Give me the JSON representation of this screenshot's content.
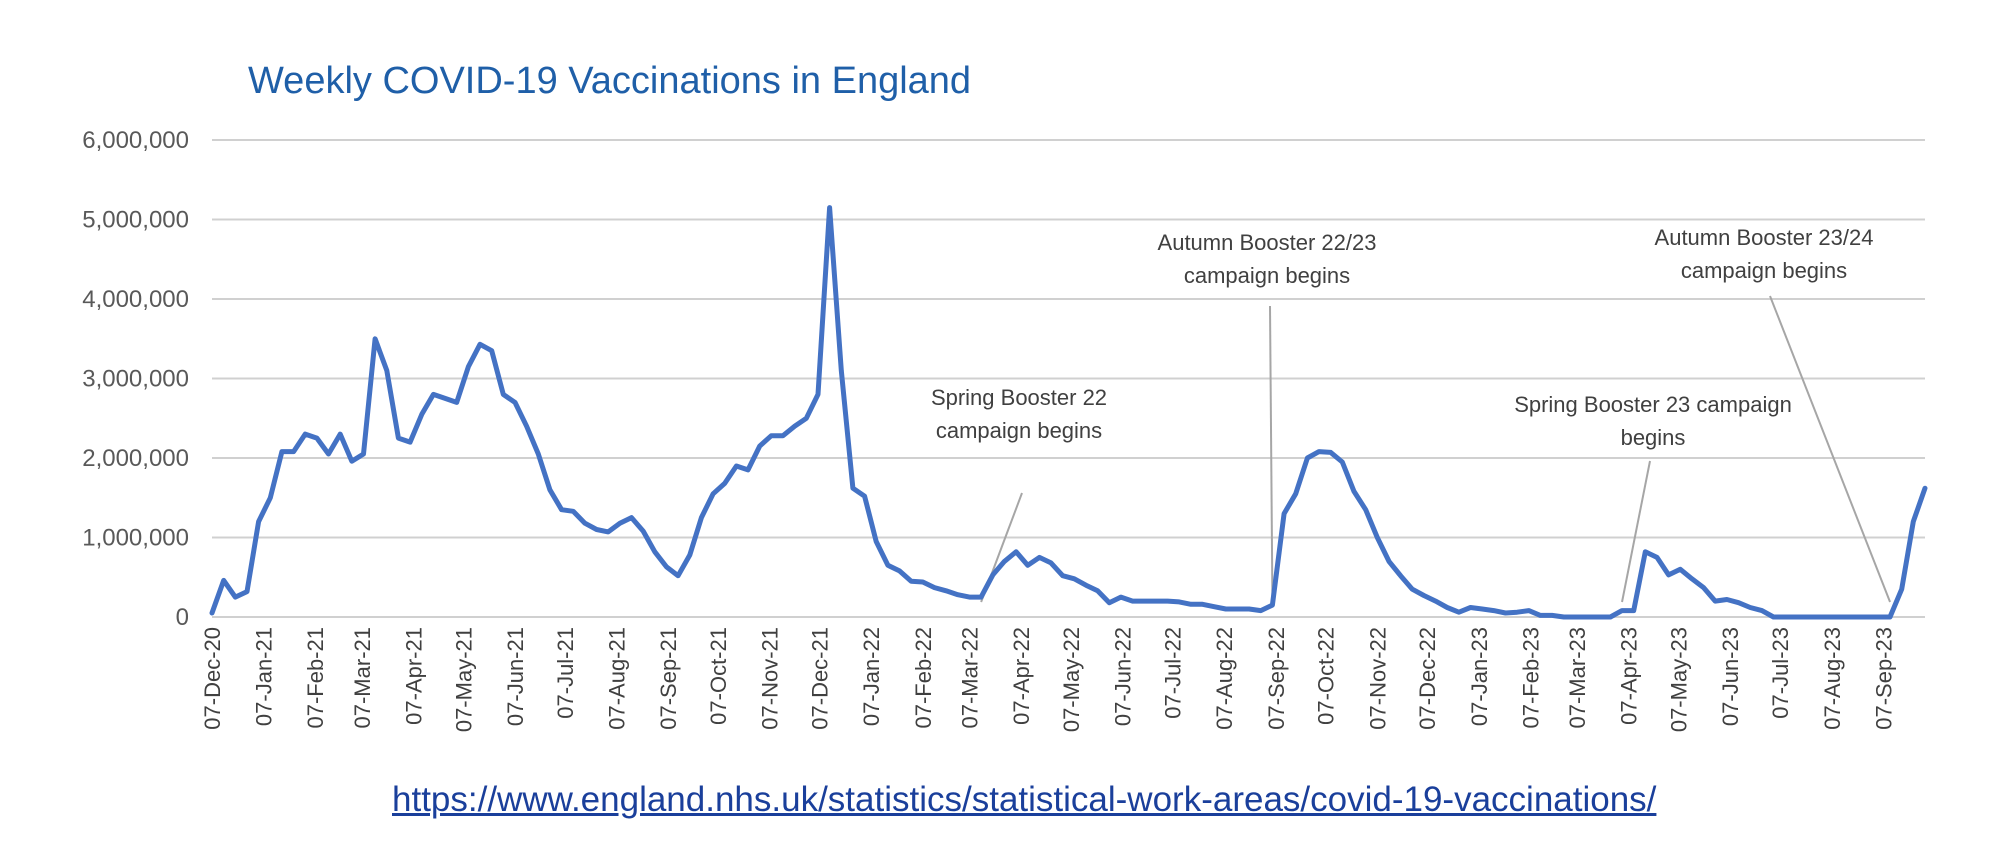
{
  "colors": {
    "line": "#4472c4",
    "title": "#1f5fa8",
    "link": "#1a3f9b",
    "annotation_line": "#a6a6a6"
  },
  "source_link": "https://www.england.nhs.uk/statistics/statistical-work-areas/covid-19-vaccinations/",
  "chart_data": {
    "type": "line",
    "title": "Weekly COVID-19 Vaccinations in England",
    "xlabel": "",
    "ylabel": "",
    "ylim": [
      0,
      6000000
    ],
    "yticks": [
      {
        "value": 0,
        "label": "0"
      },
      {
        "value": 1000000,
        "label": "1,000,000"
      },
      {
        "value": 2000000,
        "label": "2,000,000"
      },
      {
        "value": 3000000,
        "label": "3,000,000"
      },
      {
        "value": 4000000,
        "label": "4,000,000"
      },
      {
        "value": 5000000,
        "label": "5,000,000"
      },
      {
        "value": 6000000,
        "label": "6,000,000"
      }
    ],
    "grid": true,
    "legend": "none",
    "xticks": [
      "07-Dec-20",
      "07-Jan-21",
      "07-Feb-21",
      "07-Mar-21",
      "07-Apr-21",
      "07-May-21",
      "07-Jun-21",
      "07-Jul-21",
      "07-Aug-21",
      "07-Sep-21",
      "07-Oct-21",
      "07-Nov-21",
      "07-Dec-21",
      "07-Jan-22",
      "07-Feb-22",
      "07-Mar-22",
      "07-Apr-22",
      "07-May-22",
      "07-Jun-22",
      "07-Jul-22",
      "07-Aug-22",
      "07-Sep-22",
      "07-Oct-22",
      "07-Nov-22",
      "07-Dec-22",
      "07-Jan-23",
      "07-Feb-23",
      "07-Mar-23",
      "07-Apr-23",
      "07-May-23",
      "07-Jun-23",
      "07-Jul-23",
      "07-Aug-23",
      "07-Sep-23"
    ],
    "x_start": "2020-12-07",
    "x_interval": "weekly",
    "series": [
      {
        "values": [
          50000,
          460000,
          250000,
          320000,
          1200000,
          1500000,
          2080000,
          2080000,
          2300000,
          2250000,
          2050000,
          2300000,
          1960000,
          2050000,
          3500000,
          3100000,
          2250000,
          2200000,
          2550000,
          2800000,
          2750000,
          2700000,
          3150000,
          3430000,
          3350000,
          2800000,
          2700000,
          2400000,
          2050000,
          1600000,
          1350000,
          1330000,
          1180000,
          1100000,
          1070000,
          1180000,
          1250000,
          1080000,
          820000,
          630000,
          520000,
          780000,
          1250000,
          1550000,
          1680000,
          1900000,
          1850000,
          2150000,
          2280000,
          2280000,
          2400000,
          2500000,
          2800000,
          5150000,
          3100000,
          1620000,
          1520000,
          950000,
          650000,
          580000,
          450000,
          440000,
          370000,
          330000,
          280000,
          250000,
          250000,
          530000,
          700000,
          820000,
          650000,
          750000,
          680000,
          520000,
          480000,
          400000,
          330000,
          180000,
          250000,
          200000,
          200000,
          200000,
          200000,
          190000,
          160000,
          160000,
          130000,
          100000,
          100000,
          100000,
          80000,
          150000,
          1300000,
          1550000,
          2000000,
          2080000,
          2070000,
          1950000,
          1580000,
          1350000,
          1000000,
          700000,
          520000,
          350000,
          270000,
          200000,
          120000,
          60000,
          120000,
          100000,
          80000,
          50000,
          60000,
          80000,
          20000,
          20000,
          0,
          0,
          0,
          0,
          0,
          80000,
          80000,
          820000,
          750000,
          530000,
          600000,
          480000,
          370000,
          200000,
          220000,
          180000,
          120000,
          80000,
          0,
          0,
          0,
          0,
          0,
          0,
          0,
          0,
          0,
          0,
          0,
          350000,
          1200000,
          1620000
        ]
      }
    ],
    "annotations": [
      {
        "lines": [
          "Spring Booster 22",
          "campaign begins"
        ],
        "date": "2022-03-14"
      },
      {
        "lines": [
          "Autumn Booster 22/23",
          "campaign begins"
        ],
        "date": "2022-09-05"
      },
      {
        "lines": [
          "Spring Booster 23 campaign",
          "begins"
        ],
        "date": "2023-04-03"
      },
      {
        "lines": [
          "Autumn Booster 23/24",
          "campaign begins"
        ],
        "date": "2023-09-11"
      }
    ]
  }
}
